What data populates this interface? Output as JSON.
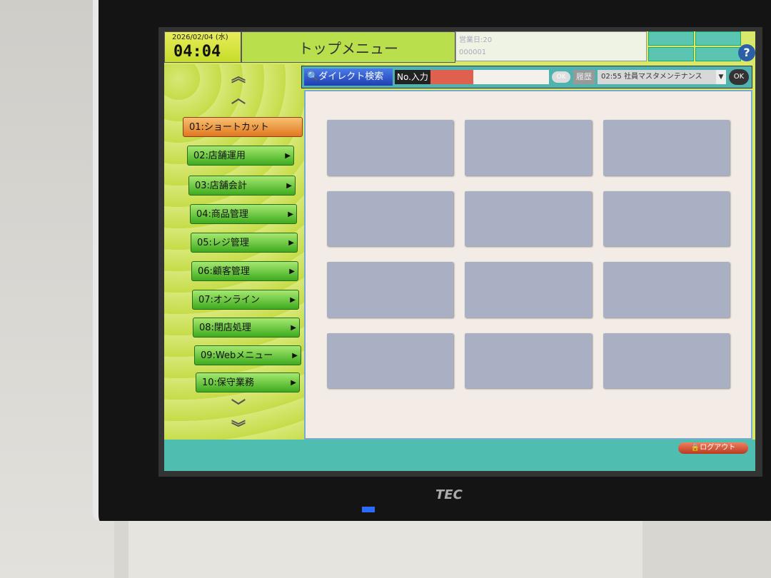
{
  "header": {
    "date": "2026/02/04 (水)",
    "time": "04:04",
    "title": "トップメニュー",
    "info_line1": "営業日:20",
    "info_line2": "000001",
    "help_icon": "question-icon"
  },
  "search": {
    "button_label": "ダイレクト検索",
    "input_label": "No.入力",
    "ok_small": "OK",
    "history_label": "履歴",
    "history_value": "02:55 社員マスタメンテナンス",
    "ok_label": "OK"
  },
  "menu": {
    "items": [
      {
        "label": "01:ショートカット",
        "active": true
      },
      {
        "label": "02:店舗運用"
      },
      {
        "label": "03:店舗会計"
      },
      {
        "label": "04:商品管理"
      },
      {
        "label": "05:レジ管理"
      },
      {
        "label": "06:顧客管理"
      },
      {
        "label": "07:オンライン"
      },
      {
        "label": "08:閉店処理"
      },
      {
        "label": "09:Webメニュー"
      },
      {
        "label": "10:保守業務"
      }
    ]
  },
  "footer": {
    "logout_label": "ログアウト"
  },
  "device": {
    "brand": "TEC"
  }
}
